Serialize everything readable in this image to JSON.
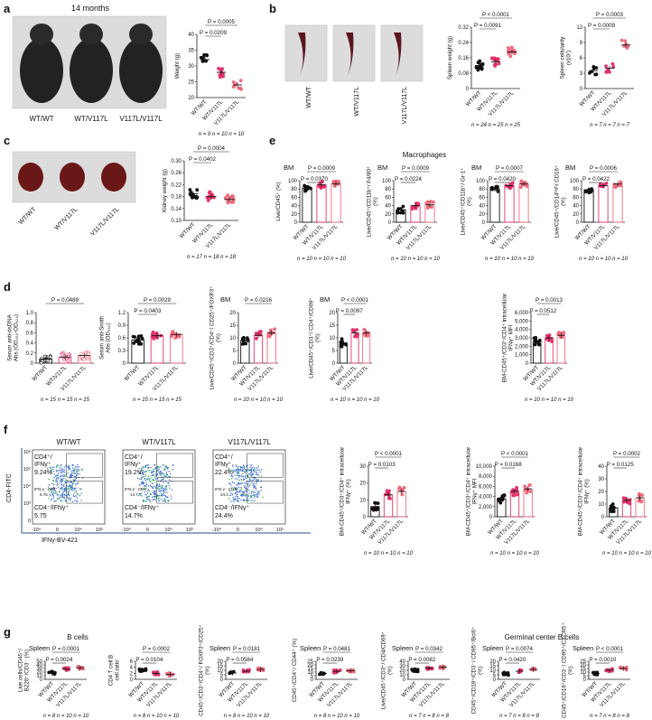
{
  "colors": {
    "wt": "#111111",
    "het": "#e6336b",
    "hom": "#f06b7d",
    "photo_bg": "#dcdcdc",
    "flow": "#3b6bd6"
  },
  "panel_labels": [
    "a",
    "b",
    "c",
    "d",
    "e",
    "f",
    "g"
  ],
  "genotypes": [
    "WT/WT",
    "WT/V117L",
    "V117L/V117L"
  ],
  "panel_a": {
    "photo_title": "14 months",
    "mouse_labels": [
      "WT/WT",
      "WT/V117L",
      "V117L/V117L"
    ],
    "ylabel": "Weight (g)",
    "ticks": [
      "40",
      "35",
      "30",
      "25",
      "20"
    ],
    "ylim": [
      20,
      40
    ],
    "pvals": [
      "P = 0.0005",
      "P = 0.0209"
    ],
    "n": "n = 9  n = 10  n = 10",
    "means": [
      32,
      28,
      24
    ]
  },
  "panel_b": {
    "photo_labels": [
      "WT/WT",
      "WT/V117L",
      "V117L/V117L"
    ],
    "spleen_weight": {
      "ylabel": "Spleen weight (g)",
      "ticks": [
        "0.32",
        "0.24",
        "0.16",
        "0.08",
        "0"
      ],
      "ylim": [
        0,
        0.32
      ],
      "pvals": [
        "P < 0.0001",
        "P = 0.0091"
      ],
      "n": "n = 24  n = 25  n = 25",
      "means": [
        0.12,
        0.14,
        0.19
      ]
    },
    "cellularity": {
      "ylabel": "Spleen cellularity (x10⁷)",
      "ticks": [
        "12",
        "9",
        "6",
        "3",
        "0"
      ],
      "ylim": [
        0,
        12
      ],
      "pvals": [
        "P = 0.0003",
        "P = 0.0009"
      ],
      "pval_mid": "P =",
      "n": "n = 7  n = 7  n = 7",
      "means": [
        3.5,
        4.0,
        8.5
      ]
    }
  },
  "panel_c": {
    "photo_labels": [
      "WT/WT",
      "WT/V117L",
      "V117L/V117L"
    ],
    "ylabel": "Kidney weight (g)",
    "ticks": [
      "0.30",
      "0.26",
      "0.22",
      "0.18",
      "0.14",
      "0.10"
    ],
    "ylim": [
      0.1,
      0.3
    ],
    "pvals": [
      "P = 0.0004",
      "P = 0.0402"
    ],
    "n": "n = 17  n = 18  n = 18",
    "means": [
      0.19,
      0.18,
      0.17
    ]
  },
  "panel_e": {
    "title": "Macrophages",
    "plots": [
      {
        "tag": "BM",
        "ylabel": "Live/CD45⁺ (%)",
        "ticks": [
          "100",
          "80",
          "60",
          "40",
          "20",
          "0"
        ],
        "pvals": [
          "P = 0.0009",
          "P = 0.0370"
        ],
        "n": "n = 10  n = 10  n = 10",
        "means": [
          82,
          90,
          92
        ]
      },
      {
        "tag": "BM",
        "ylabel": "Live/CD45⁺/CD11b⁺/ F4/80⁺ (%)",
        "ticks": [
          "100",
          "80",
          "60",
          "40",
          "20",
          "0"
        ],
        "pvals": [
          "P = 0.0009",
          "P = 0.0224"
        ],
        "n": "n = 10  n = 10  n = 10",
        "means": [
          30,
          40,
          42
        ]
      },
      {
        "tag": "BM",
        "ylabel": "Live/CD45⁺/CD11b⁺/ Gr-1⁺ (%)",
        "ticks": [
          "100",
          "80",
          "60",
          "40",
          "20",
          "0"
        ],
        "pvals": [
          "P = 0.0007",
          "P = 0.0420"
        ],
        "n": "n = 10  n = 10  n = 10",
        "means": [
          80,
          88,
          92
        ]
      },
      {
        "tag": "BM",
        "ylabel": "Live/CD45⁺/CD14ʰⁱᵍʰ/ CD16⁺ (%)",
        "ticks": [
          "100",
          "80",
          "60",
          "40",
          "20",
          "0"
        ],
        "pvals": [
          "P = 0.0006",
          "P = 0.0422"
        ],
        "n": "n = 10  n = 10  n = 10",
        "means": [
          78,
          88,
          92
        ]
      }
    ]
  },
  "panel_d": {
    "plots": [
      {
        "tag": "",
        "ylabel": "Serum anti-dsDNA Abs (OD₄₅₀-OD₆₂₀)",
        "ticks": [
          "1.0",
          "0.8",
          "0.6",
          "0.4",
          "0.2",
          "0"
        ],
        "pvals": [
          "P = 0.0489"
        ],
        "n": "n = 15  n = 15  n = 15",
        "means": [
          0.08,
          0.12,
          0.15
        ]
      },
      {
        "tag": "",
        "ylabel": "Serum anti-Smith Abs (OD₄₅₀)",
        "ticks": [
          "1.2",
          "0.9",
          "0.6",
          "0.3",
          "0"
        ],
        "pvals": [
          "P = 0.0029",
          "P = 0.0403"
        ],
        "n": "n = 15  n = 15  n = 15",
        "means": [
          0.55,
          0.65,
          0.68
        ]
      },
      {
        "tag": "BM",
        "ylabel": "Live/CD45⁺/CD3⁺/CD4⁺/ CD25⁺/FOXP3⁺ (%)",
        "ticks": [
          "20",
          "15",
          "10",
          "5",
          "0"
        ],
        "pvals": [
          "P = 0.0216"
        ],
        "n": "n = 10  n = 10  n = 10",
        "means": [
          9,
          11,
          12
        ]
      },
      {
        "tag": "BM",
        "ylabel": "Live/CD45⁺/CD3⁺/ CD4⁺/CD69⁺ (%)",
        "ticks": [
          "20",
          "15",
          "10",
          "5",
          "0"
        ],
        "pvals": [
          "P < 0.0001",
          "P = 0.0097"
        ],
        "n": "n = 10  n = 10  n = 10",
        "means": [
          8,
          12,
          12
        ]
      },
      {
        "tag": "",
        "ylabel": "BM-CD45⁺/CD3⁺/CD4⁺ intracellular IFNγ⁺ MFI",
        "ticks": [
          "6,000",
          "5,000",
          "4,000",
          "3,000",
          "2,000",
          "1,000",
          "0"
        ],
        "pvals": [
          "P = 0.0013",
          "P = 0.0512"
        ],
        "n": "n = 10  n = 10  n = 10",
        "means": [
          2600,
          3000,
          3300
        ]
      }
    ]
  },
  "panel_f": {
    "titles": [
      "WT/WT",
      "WT/V117L",
      "V117L/V117L"
    ],
    "q_upper": [
      "CD4⁺/ IFNγ⁺",
      "CD4⁺/ IFNγ⁺",
      "CD4⁺/ IFNγ⁺"
    ],
    "upper_pct": [
      "9.24%",
      "19.2%",
      "22.4%"
    ],
    "iso_label": [
      "IFN-γ⁻ CD4⁺",
      "IFN-γ⁻ CD4⁺",
      "IFN-γ⁻ CD4⁺"
    ],
    "iso_val": [
      "5.75",
      "14.7",
      "24.4"
    ],
    "q_lower": [
      "CD4⁻/IFNγ⁺",
      "CD4⁻/IFNγ⁺",
      "CD4⁻/IFNγ⁺"
    ],
    "lower_pct": [
      "5.75",
      "14.7%",
      "24.4%"
    ],
    "yaxis": "CD4-FITC",
    "xaxis": "IFNγ-BV-421",
    "yticks": [
      "10⁶",
      "10⁵",
      "10⁴",
      "10³",
      "0"
    ],
    "xticks": [
      "-10⁴",
      "0",
      "10⁴",
      "10⁵"
    ],
    "plots": [
      {
        "ylabel": "BM-CD45⁺/CD3⁺/CD4⁺ intracellular IFNγ⁺ (%)",
        "ticks": [
          "30",
          "20",
          "10",
          "0"
        ],
        "pvals": [
          "P < 0.0001",
          "P = 0.0103"
        ],
        "n": "n = 10  n = 10  n = 10",
        "means": [
          6,
          13,
          15
        ]
      },
      {
        "ylabel": "BM-CD45⁺/CD3⁺/CD4⁺ intracellular IFNγ⁺ MFI",
        "ticks": [
          "10,000",
          "8,000",
          "6,000",
          "4,000",
          "2,000",
          "0"
        ],
        "pvals": [
          "P < 0.0001",
          "P = 0.0168"
        ],
        "n": "n = 10  n = 10  n = 10",
        "means": [
          3500,
          5000,
          5500
        ]
      },
      {
        "ylabel": "BM-CD45⁺/CD3⁺/CD4⁺ intracellular IFNγ⁺ (%)",
        "ticks": [
          "40",
          "30",
          "20",
          "10",
          "0"
        ],
        "pvals": [
          "P = 0.0002",
          "P = 0.0125"
        ],
        "n": "n = 10  n = 10  n = 10",
        "means": [
          7,
          13,
          15
        ]
      }
    ]
  },
  "panel_g": {
    "group_titles": [
      "B cells",
      "Germinal center B cells"
    ],
    "plots": [
      {
        "tag": "Spleen",
        "ylabel": "Live cells/CD45⁺/ B220⁺/CD3⁻ (%)",
        "ticks": [
          "50",
          "40",
          "30",
          "20",
          "10",
          "0"
        ],
        "pvals": [
          "P = 0.0001",
          "P = 0.0024"
        ],
        "n": "n = 8  n = 10  n = 10",
        "means": [
          18,
          28,
          32
        ]
      },
      {
        "tag": "",
        "ylabel": "CD4 T cell:B cell ratio",
        "ticks": [
          "6",
          "4",
          "2",
          "0"
        ],
        "pvals": [
          "P = 0.0002",
          "P = 0.0104"
        ],
        "n": "n = 8  n = 10  n = 10",
        "means": [
          3.0,
          2.0,
          1.6
        ]
      },
      {
        "tag": "Spleen",
        "ylabel": "CD45⁺/CD3⁺/CD4⁺/ FOXP3⁺/CD25⁺ (%)",
        "ticks": [
          "20",
          "15",
          "10",
          "5",
          "0"
        ],
        "pvals": [
          "P = 0.0181",
          "P = 0.0584"
        ],
        "n": "n = 8  n = 10  n = 10",
        "means": [
          7,
          9,
          11
        ]
      },
      {
        "tag": "Spleen",
        "ylabel": "CD45⁺/CD4⁺/ CD44⁺ (%)",
        "ticks": [
          "25",
          "20",
          "15",
          "10",
          "5",
          "0"
        ],
        "pvals": [
          "P = 0.0481",
          "P = 0.0239"
        ],
        "n": "n = 8  n = 10  n = 10",
        "means": [
          8,
          11,
          12
        ]
      },
      {
        "tag": "Spleen",
        "ylabel": "Live/CD45⁺/CD3⁺/ CD4/CD69⁺ (%)",
        "ticks": [
          "40",
          "30",
          "20",
          "10",
          "0"
        ],
        "pvals": [
          "P = 0.0342",
          "P = 0.0082"
        ],
        "n": "n = 7  n = 8  n = 8",
        "means": [
          20,
          25,
          27
        ]
      },
      {
        "tag": "Spleen",
        "ylabel": "CD45⁺/CD19⁺/CD3⁻/ CD95⁺/Bcl6⁺ (%)",
        "ticks": [
          "20",
          "15",
          "10",
          "5",
          "0"
        ],
        "pvals": [
          "P = 0.0074",
          "P = 0.0420"
        ],
        "n": "n = 7  n = 8  n = 8",
        "means": [
          6,
          9,
          11
        ]
      },
      {
        "tag": "Spleen",
        "ylabel": "CD45⁺/CD19⁺/CD3⁻/ CD95⁺/CXCR5⁺ (%)",
        "ticks": [
          "25",
          "20",
          "15",
          "10",
          "5",
          "0"
        ],
        "pvals": [
          "P < 0.0001",
          "P = 0.0010"
        ],
        "n": "n = 7  n = 8  n = 8",
        "means": [
          8,
          13,
          15
        ]
      }
    ]
  }
}
